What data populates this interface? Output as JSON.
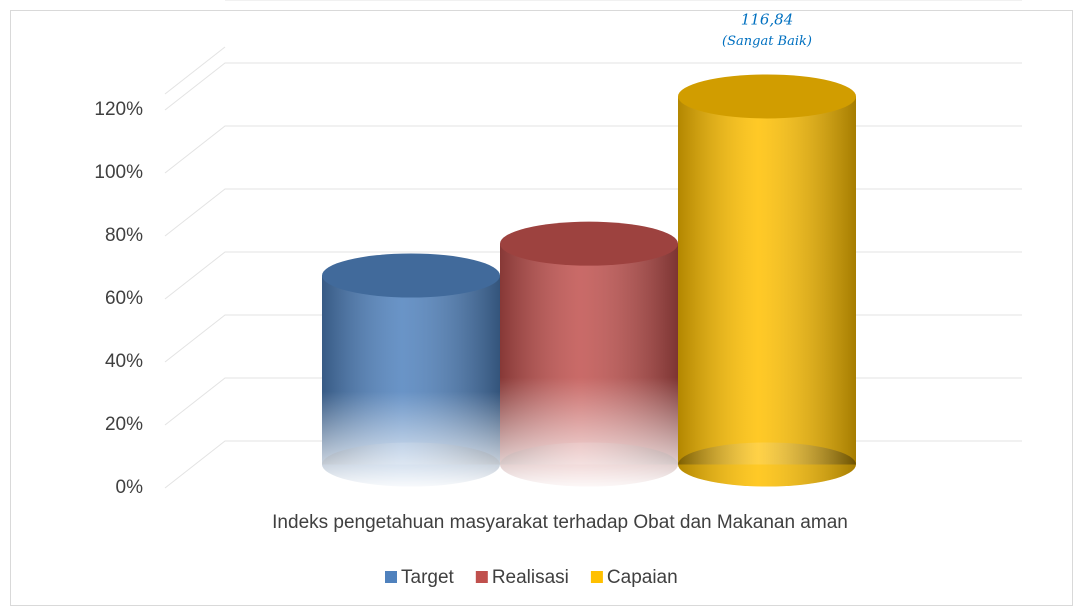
{
  "chart_data": {
    "type": "bar3d",
    "categories": [
      "Indeks pengetahuan masyarakat terhadap Obat dan Makanan aman"
    ],
    "series": [
      {
        "name": "Target",
        "color": "#4f81bd",
        "values": [
          60
        ]
      },
      {
        "name": "Realisasi",
        "color": "#c0504d",
        "values": [
          70.1
        ]
      },
      {
        "name": "Capaian",
        "color": "#ffc000",
        "values": [
          116.84
        ],
        "value_labels": [
          "116,84"
        ]
      }
    ],
    "annotation": "(Sangat Baik)",
    "ylim": [
      0,
      140
    ],
    "yticks": [
      {
        "value": 0,
        "label": "0%"
      },
      {
        "value": 20,
        "label": "20%"
      },
      {
        "value": 40,
        "label": "40%"
      },
      {
        "value": 60,
        "label": "60%"
      },
      {
        "value": 80,
        "label": "80%"
      },
      {
        "value": 100,
        "label": "100%"
      },
      {
        "value": 120,
        "label": "120%"
      }
    ],
    "grid": true,
    "legend": "bottom"
  }
}
